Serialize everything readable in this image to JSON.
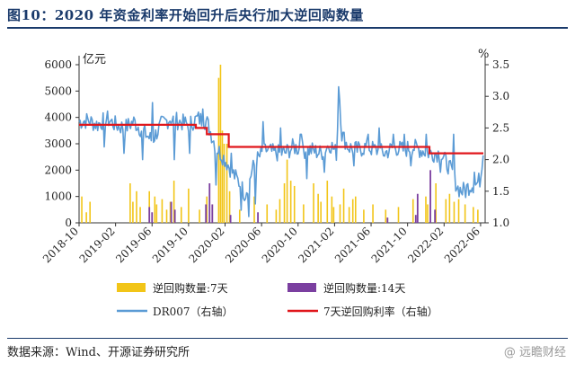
{
  "header": {
    "title": "图10：2020 年资金利率开始回升后央行加大逆回购数量"
  },
  "footer": {
    "source": "数据来源：Wind、开源证券研究所",
    "watermark": "@ 远瞻财经"
  },
  "chart_data": {
    "type": "bar+line",
    "title": "图10：2020 年资金利率开始回升后央行加大逆回购数量",
    "left_axis": {
      "unit": "亿元",
      "ticks": [
        0,
        1000,
        2000,
        3000,
        4000,
        5000,
        6000
      ],
      "ylim": [
        0,
        6000
      ]
    },
    "right_axis": {
      "unit": "%",
      "ticks": [
        1.0,
        1.5,
        2.0,
        2.5,
        3.0,
        3.5
      ],
      "ylim": [
        1.0,
        3.5
      ]
    },
    "x_ticks": [
      "2018-10",
      "2019-02",
      "2019-06",
      "2019-10",
      "2020-02",
      "2020-06",
      "2020-10",
      "2021-02",
      "2021-06",
      "2021-10",
      "2022-02",
      "2022-06"
    ],
    "legend": [
      {
        "name": "逆回购数量:7天",
        "color": "#f2c518",
        "kind": "bar"
      },
      {
        "name": "逆回购数量:14天",
        "color": "#7b3fa0",
        "kind": "bar"
      },
      {
        "name": "DR007（右轴）",
        "color": "#5b9bd5",
        "kind": "line"
      },
      {
        "name": "7天逆回购利率（右轴）",
        "color": "#e0161b",
        "kind": "line"
      }
    ],
    "x_range_months": [
      0,
      44.5
    ],
    "series": {
      "reverse_repo_7d_bars": [
        [
          0.3,
          1000
        ],
        [
          0.8,
          400
        ],
        [
          1.2,
          800
        ],
        [
          5.6,
          1500
        ],
        [
          5.9,
          800
        ],
        [
          6.3,
          1200
        ],
        [
          6.7,
          600
        ],
        [
          7.7,
          1200
        ],
        [
          8.3,
          1000
        ],
        [
          8.5,
          700
        ],
        [
          9.1,
          900
        ],
        [
          9.6,
          500
        ],
        [
          10.0,
          800
        ],
        [
          10.4,
          1600
        ],
        [
          11.2,
          600
        ],
        [
          12.0,
          1300
        ],
        [
          13.2,
          500
        ],
        [
          14.0,
          1000
        ],
        [
          14.6,
          700
        ],
        [
          15.3,
          5500
        ],
        [
          15.5,
          6000
        ],
        [
          15.7,
          3500
        ],
        [
          15.9,
          3000
        ],
        [
          16.2,
          3000
        ],
        [
          16.5,
          1200
        ],
        [
          17.6,
          500
        ],
        [
          19.2,
          1000
        ],
        [
          20.6,
          700
        ],
        [
          21.6,
          500
        ],
        [
          22.0,
          900
        ],
        [
          22.5,
          1500
        ],
        [
          22.8,
          2400
        ],
        [
          23.2,
          1600
        ],
        [
          23.6,
          1400
        ],
        [
          24.6,
          700
        ],
        [
          25.7,
          1500
        ],
        [
          26.2,
          1100
        ],
        [
          26.5,
          800
        ],
        [
          27.2,
          1600
        ],
        [
          27.7,
          1000
        ],
        [
          27.9,
          600
        ],
        [
          28.6,
          700
        ],
        [
          29.0,
          1300
        ],
        [
          29.6,
          600
        ],
        [
          30.0,
          900
        ],
        [
          30.3,
          1000
        ],
        [
          31.2,
          500
        ],
        [
          32.2,
          700
        ],
        [
          33.6,
          500
        ],
        [
          35.0,
          600
        ],
        [
          36.6,
          900
        ],
        [
          38.0,
          1000
        ],
        [
          38.2,
          700
        ],
        [
          39.1,
          1500
        ],
        [
          40.2,
          900
        ],
        [
          40.6,
          1100
        ],
        [
          41.1,
          800
        ],
        [
          41.6,
          900
        ],
        [
          42.3,
          700
        ],
        [
          43.2,
          600
        ],
        [
          43.7,
          500
        ]
      ],
      "reverse_repo_14d_bars": [
        [
          7.7,
          600
        ],
        [
          8.0,
          400
        ],
        [
          10.1,
          800
        ],
        [
          10.5,
          500
        ],
        [
          13.9,
          700
        ],
        [
          14.3,
          1500
        ],
        [
          14.6,
          700
        ],
        [
          16.6,
          300
        ],
        [
          19.6,
          400
        ],
        [
          33.8,
          200
        ],
        [
          36.9,
          300
        ],
        [
          37.1,
          1100
        ],
        [
          38.5,
          2000
        ],
        [
          39.0,
          500
        ]
      ],
      "dr007_smooth": [
        [
          0,
          2.6
        ],
        [
          1,
          2.62
        ],
        [
          2,
          2.55
        ],
        [
          3,
          2.65
        ],
        [
          4,
          2.55
        ],
        [
          5,
          2.5
        ],
        [
          6,
          2.6
        ],
        [
          7,
          2.45
        ],
        [
          8,
          2.3
        ],
        [
          9,
          2.55
        ],
        [
          10,
          2.65
        ],
        [
          11,
          2.6
        ],
        [
          12,
          2.55
        ],
        [
          13,
          2.65
        ],
        [
          14,
          2.6
        ],
        [
          15,
          2.2
        ],
        [
          16,
          2.0
        ],
        [
          17,
          1.75
        ],
        [
          17.5,
          1.65
        ],
        [
          18.2,
          1.45
        ],
        [
          19,
          1.85
        ],
        [
          19.5,
          2.0
        ],
        [
          20.5,
          2.15
        ],
        [
          21.5,
          2.1
        ],
        [
          22.5,
          2.1
        ],
        [
          23.5,
          2.2
        ],
        [
          24.5,
          2.15
        ],
        [
          25.5,
          2.15
        ],
        [
          26.5,
          2.1
        ],
        [
          27.5,
          2.25
        ],
        [
          28.2,
          2.1
        ],
        [
          28.5,
          3.1
        ],
        [
          28.8,
          2.4
        ],
        [
          29.5,
          2.2
        ],
        [
          30.5,
          2.15
        ],
        [
          31.5,
          2.2
        ],
        [
          32.5,
          2.15
        ],
        [
          33.5,
          2.1
        ],
        [
          34.5,
          2.2
        ],
        [
          35.5,
          2.15
        ],
        [
          36.5,
          2.2
        ],
        [
          37.5,
          2.15
        ],
        [
          38.5,
          2.1
        ],
        [
          39.5,
          2.1
        ],
        [
          40.5,
          1.9
        ],
        [
          41.0,
          1.75
        ],
        [
          41.5,
          1.55
        ],
        [
          42.0,
          1.5
        ],
        [
          42.5,
          1.55
        ],
        [
          43.0,
          1.6
        ],
        [
          43.5,
          1.6
        ],
        [
          44.0,
          1.7
        ],
        [
          44.3,
          2.2
        ]
      ],
      "dr007_spikes": [
        [
          2.8,
          2.2
        ],
        [
          4.9,
          2.1
        ],
        [
          7.0,
          2.0
        ],
        [
          8.0,
          2.9
        ],
        [
          10.4,
          2.0
        ],
        [
          12.1,
          2.1
        ],
        [
          13.6,
          2.8
        ],
        [
          15.0,
          1.6
        ],
        [
          16.7,
          2.1
        ],
        [
          17.8,
          1.2
        ],
        [
          18.6,
          1.1
        ],
        [
          19.3,
          1.3
        ],
        [
          20.2,
          2.6
        ],
        [
          22.1,
          2.5
        ],
        [
          24.3,
          2.4
        ],
        [
          25.0,
          1.7
        ],
        [
          26.9,
          1.8
        ],
        [
          28.4,
          3.15
        ],
        [
          30.1,
          1.9
        ],
        [
          31.7,
          2.4
        ],
        [
          32.9,
          2.5
        ],
        [
          34.4,
          2.4
        ],
        [
          35.6,
          2.4
        ],
        [
          36.4,
          1.9
        ],
        [
          38.0,
          2.4
        ],
        [
          39.6,
          1.8
        ],
        [
          41.0,
          2.4
        ],
        [
          42.4,
          1.4
        ],
        [
          43.3,
          1.8
        ]
      ],
      "repo_rate_7d": [
        [
          0,
          2.55
        ],
        [
          12.8,
          2.55
        ],
        [
          12.8,
          2.5
        ],
        [
          14.0,
          2.5
        ],
        [
          14.0,
          2.4
        ],
        [
          16.4,
          2.4
        ],
        [
          16.4,
          2.2
        ],
        [
          38.4,
          2.2
        ],
        [
          38.4,
          2.1
        ],
        [
          44.3,
          2.1
        ]
      ]
    }
  }
}
